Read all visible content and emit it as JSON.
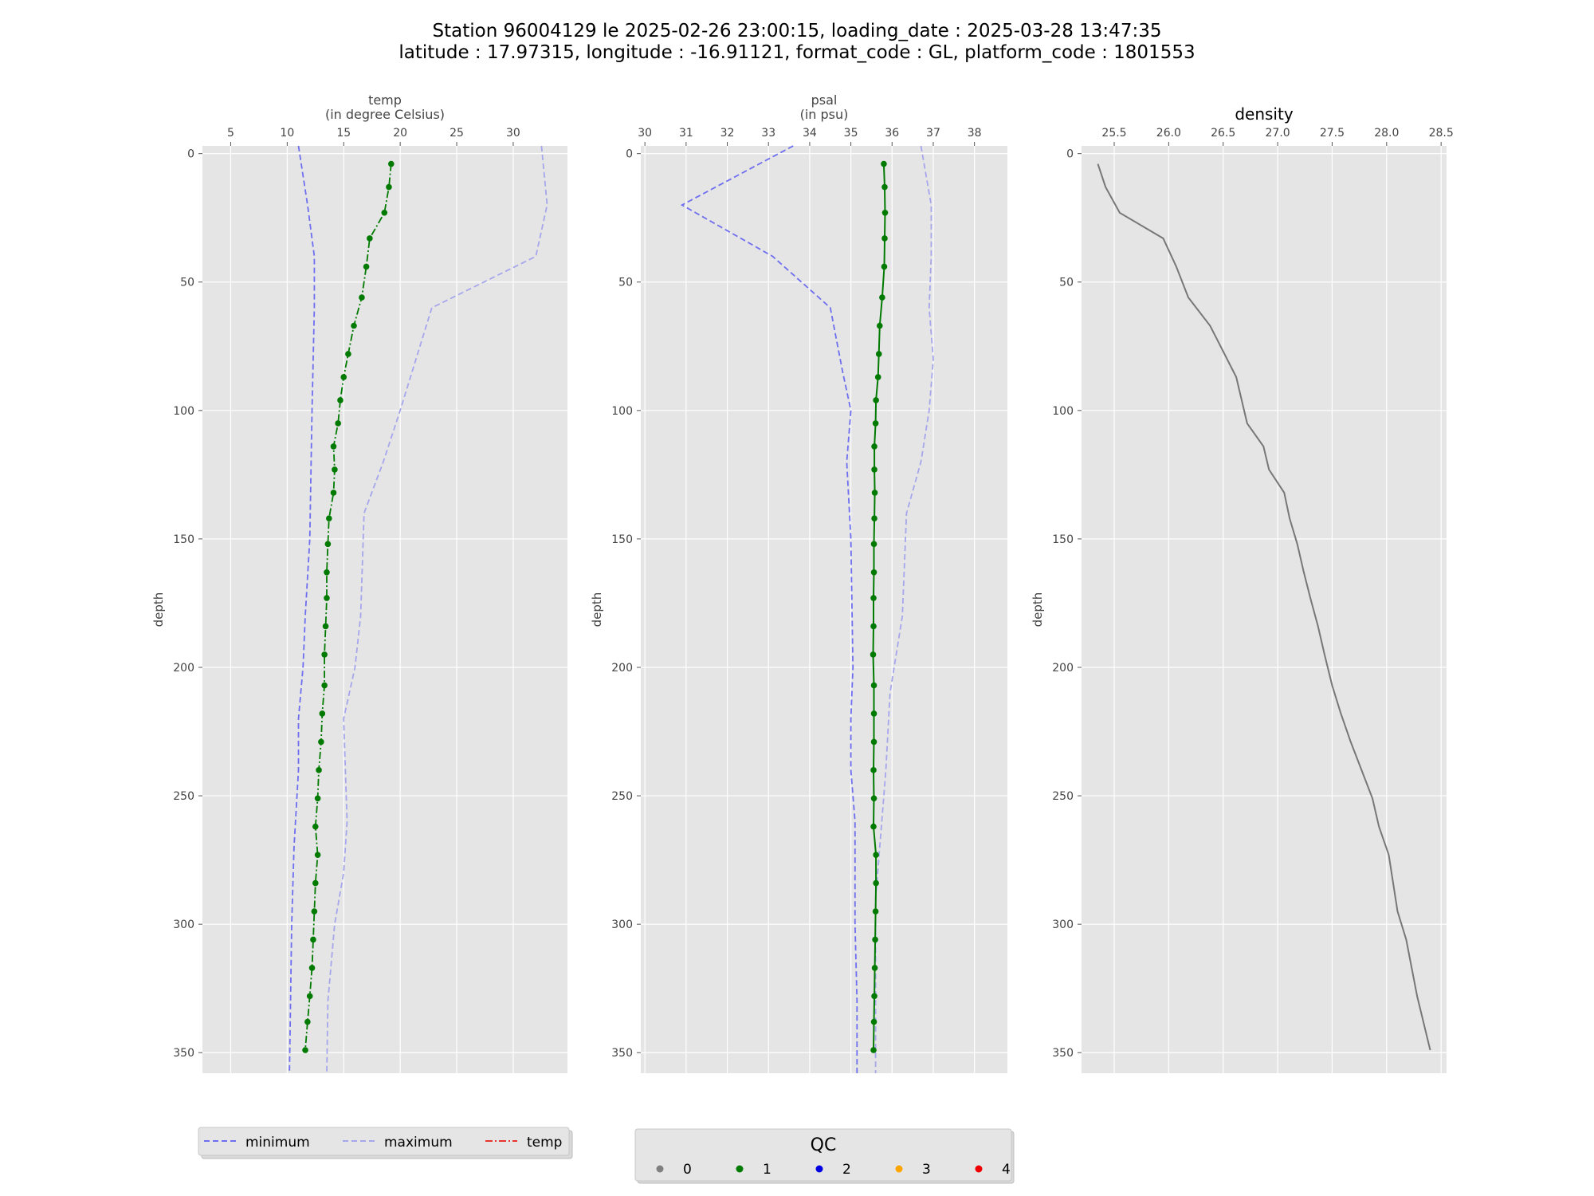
{
  "title": {
    "line1": "Station 96004129 le 2025-02-26 23:00:15, loading_date : 2025-03-28 13:47:35",
    "line2": "latitude : 17.97315, longitude : -16.91121, format_code : GL, platform_code : 1801553"
  },
  "colors": {
    "min_line": "#6e6ef0",
    "max_line": "#a6a6ec",
    "profile": "#007a00",
    "density": "#777777",
    "axes_bg": "#e5e5e5",
    "grid": "#ffffff"
  },
  "chart_data": [
    {
      "type": "line",
      "name": "temp",
      "xlabel": "temp",
      "xunit": "(in degree Celsius)",
      "ylabel": "depth",
      "xlim": [
        2.5,
        34.8
      ],
      "ylim": [
        358,
        -3
      ],
      "xticks": [
        5,
        10,
        15,
        20,
        25,
        30
      ],
      "yticks": [
        0,
        50,
        100,
        150,
        200,
        250,
        300,
        350
      ],
      "series": [
        {
          "name": "minimum",
          "style": "dashed",
          "x": [
            11.0,
            11.8,
            12.4,
            12.4,
            12.2,
            12.0,
            11.6,
            11.4,
            11.0,
            11.0,
            10.6,
            10.4,
            10.2
          ],
          "y": [
            -3,
            20,
            40,
            60,
            100,
            150,
            180,
            200,
            220,
            240,
            270,
            300,
            358
          ]
        },
        {
          "name": "maximum",
          "style": "dashed",
          "x": [
            32.5,
            33.0,
            32.0,
            22.8,
            20.0,
            18.5,
            16.8,
            16.5,
            16.0,
            15.0,
            15.3,
            15.0,
            14.2,
            13.6,
            13.5
          ],
          "y": [
            -3,
            20,
            40,
            60,
            100,
            120,
            140,
            180,
            200,
            220,
            260,
            280,
            300,
            330,
            358
          ]
        },
        {
          "name": "temp",
          "style": "dashdot",
          "qc": 1,
          "x": [
            19.2,
            19.0,
            18.6,
            17.3,
            17.0,
            16.6,
            15.9,
            15.4,
            15.0,
            14.7,
            14.5,
            14.1,
            14.2,
            14.1,
            13.7,
            13.6,
            13.5,
            13.5,
            13.4,
            13.3,
            13.3,
            13.1,
            13.0,
            12.8,
            12.7,
            12.5,
            12.7,
            12.5,
            12.4,
            12.3,
            12.2,
            12.0,
            11.8,
            11.6
          ],
          "y": [
            4,
            13,
            23,
            33,
            44,
            56,
            67,
            78,
            87,
            96,
            105,
            114,
            123,
            132,
            142,
            152,
            163,
            173,
            184,
            195,
            207,
            218,
            229,
            240,
            251,
            262,
            273,
            284,
            295,
            306,
            317,
            328,
            338,
            349
          ]
        }
      ],
      "legend": {
        "placement": "bottom",
        "entries": [
          "minimum",
          "maximum",
          "temp"
        ],
        "entry_colors": [
          "#6e6ef0",
          "#a6a6ec",
          "#e8342f"
        ]
      }
    },
    {
      "type": "line",
      "name": "psal",
      "xlabel": "psal",
      "xunit": "(in psu)",
      "ylabel": "depth",
      "xlim": [
        29.9,
        38.8
      ],
      "ylim": [
        358,
        -3
      ],
      "xticks": [
        30,
        31,
        32,
        33,
        34,
        35,
        36,
        37,
        38
      ],
      "yticks": [
        0,
        50,
        100,
        150,
        200,
        250,
        300,
        350
      ],
      "series": [
        {
          "name": "minimum",
          "style": "dashed",
          "x": [
            33.6,
            30.9,
            33.1,
            34.5,
            34.8,
            35.0,
            34.9,
            35.0,
            35.05,
            35.0,
            35.0,
            35.1,
            35.1,
            35.1,
            35.15,
            35.15
          ],
          "y": [
            -3,
            20,
            40,
            60,
            85,
            100,
            120,
            150,
            200,
            220,
            240,
            260,
            280,
            300,
            330,
            358
          ]
        },
        {
          "name": "maximum",
          "style": "dashed",
          "x": [
            36.7,
            36.95,
            36.95,
            36.9,
            37.0,
            36.9,
            36.7,
            36.35,
            36.25,
            35.95,
            35.85,
            35.75,
            35.6,
            35.6
          ],
          "y": [
            -3,
            20,
            40,
            60,
            80,
            100,
            120,
            140,
            180,
            210,
            240,
            260,
            290,
            358
          ]
        },
        {
          "name": "psal",
          "style": "solid",
          "qc": 1,
          "x": [
            35.8,
            35.82,
            35.83,
            35.82,
            35.81,
            35.76,
            35.7,
            35.68,
            35.66,
            35.61,
            35.6,
            35.57,
            35.57,
            35.58,
            35.57,
            35.56,
            35.56,
            35.55,
            35.55,
            35.54,
            35.56,
            35.56,
            35.56,
            35.55,
            35.56,
            35.55,
            35.61,
            35.61,
            35.6,
            35.59,
            35.58,
            35.57,
            35.56,
            35.55
          ],
          "y": [
            4,
            13,
            23,
            33,
            44,
            56,
            67,
            78,
            87,
            96,
            105,
            114,
            123,
            132,
            142,
            152,
            163,
            173,
            184,
            195,
            207,
            218,
            229,
            240,
            251,
            262,
            273,
            284,
            295,
            306,
            317,
            328,
            338,
            349
          ]
        }
      ],
      "qc_legend": {
        "title": "QC",
        "placement": "bottom",
        "entries": [
          {
            "label": "0",
            "color": "#808080"
          },
          {
            "label": "1",
            "color": "#007a00"
          },
          {
            "label": "2",
            "color": "#0000e0"
          },
          {
            "label": "3",
            "color": "#ffa500"
          },
          {
            "label": "4",
            "color": "#ee0000"
          }
        ]
      }
    },
    {
      "type": "line",
      "name": "density",
      "title": "density",
      "ylabel": "depth",
      "xlim": [
        25.2,
        28.55
      ],
      "ylim": [
        358,
        -3
      ],
      "xticks": [
        25.5,
        26.0,
        26.5,
        27.0,
        27.5,
        28.0,
        28.5
      ],
      "xtick_labels": [
        "25.5",
        "26.0",
        "26.5",
        "27.0",
        "27.5",
        "28.0",
        "28.5"
      ],
      "yticks": [
        0,
        50,
        100,
        150,
        200,
        250,
        300,
        350
      ],
      "series": [
        {
          "name": "density",
          "style": "solid",
          "x": [
            25.35,
            25.42,
            25.55,
            25.95,
            26.07,
            26.18,
            26.38,
            26.62,
            26.72,
            26.87,
            26.92,
            27.06,
            27.11,
            27.18,
            27.24,
            27.3,
            27.37,
            27.43,
            27.5,
            27.58,
            27.67,
            27.77,
            27.87,
            27.93,
            28.02,
            28.1,
            28.18,
            28.28,
            28.4
          ],
          "y": [
            4,
            13,
            23,
            33,
            44,
            56,
            67,
            87,
            105,
            114,
            123,
            132,
            142,
            152,
            163,
            173,
            184,
            195,
            207,
            218,
            229,
            240,
            251,
            262,
            273,
            295,
            306,
            328,
            349
          ]
        }
      ]
    }
  ]
}
